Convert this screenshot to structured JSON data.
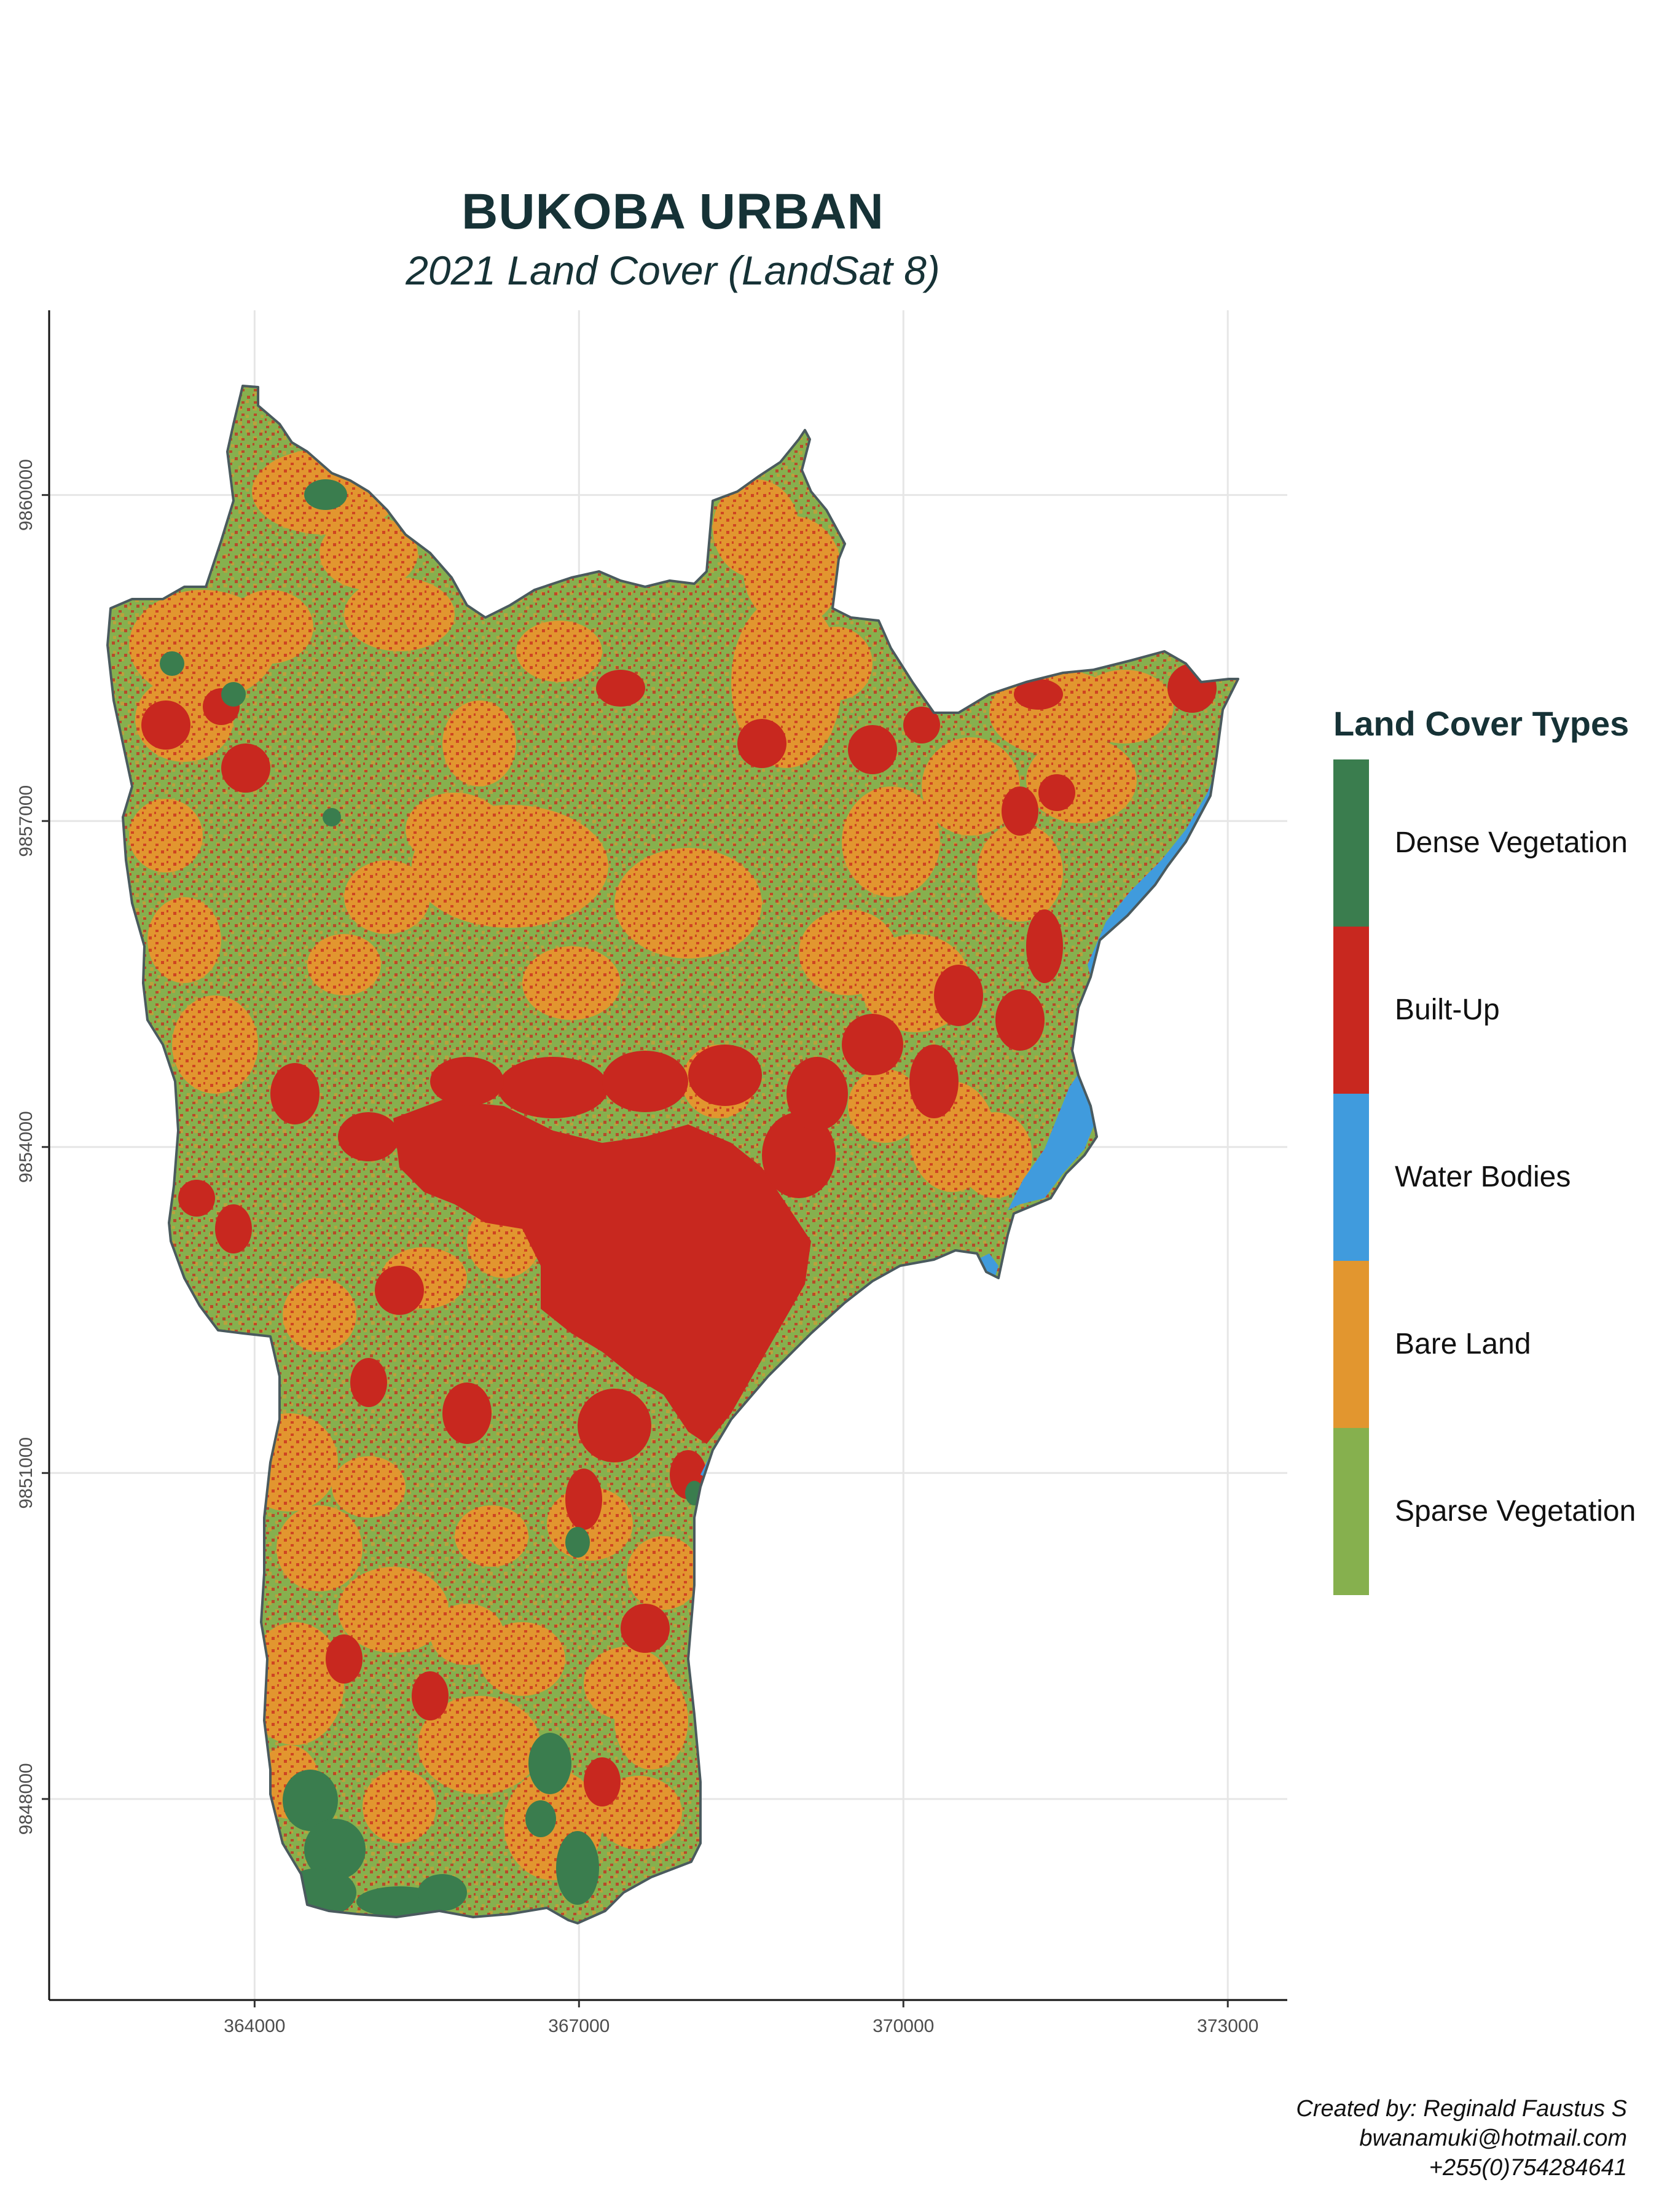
{
  "map": {
    "title": "BUKOBA URBAN",
    "subtitle": "2021 Land Cover (LandSat 8)",
    "region_name": "Bukoba Urban",
    "x_axis": {
      "ticks": [
        "364000",
        "367000",
        "370000",
        "373000"
      ],
      "values": [
        364000,
        367000,
        370000,
        373000
      ],
      "range": [
        362100,
        373550
      ]
    },
    "y_axis": {
      "ticks": [
        "9848000",
        "9851000",
        "9854000",
        "9857000",
        "9860000"
      ],
      "values": [
        9848000,
        9851000,
        9854000,
        9857000,
        9860000
      ],
      "range": [
        9846150,
        9861700
      ]
    },
    "grid": true,
    "colors": {
      "dense_vegetation": "#3a7d4e",
      "built_up": "#c8281f",
      "water_bodies": "#409bdd",
      "bare_land": "#e2962f",
      "sparse_vegetation": "#86b04e",
      "outline": "#4a5a5e",
      "text": "#163236"
    }
  },
  "legend": {
    "title": "Land Cover Types",
    "placement": "right",
    "items": [
      {
        "label": "Dense Vegetation",
        "color": "#3a7d4e"
      },
      {
        "label": "Built-Up",
        "color": "#c8281f"
      },
      {
        "label": "Water Bodies",
        "color": "#409bdd"
      },
      {
        "label": "Bare Land",
        "color": "#e2962f"
      },
      {
        "label": "Sparse Vegetation",
        "color": "#86b04e"
      }
    ]
  },
  "credits": {
    "line1": "Created by: Reginald Faustus S",
    "line2": "bwanamuki@hotmail.com",
    "line3": "+255(0)754284641"
  }
}
